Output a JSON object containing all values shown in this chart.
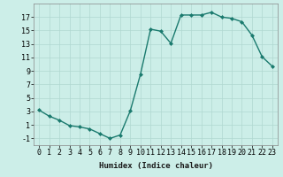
{
  "title": "",
  "xlabel": "Humidex (Indice chaleur)",
  "ylabel": "",
  "x": [
    0,
    1,
    2,
    3,
    4,
    5,
    6,
    7,
    8,
    9,
    10,
    11,
    12,
    13,
    14,
    15,
    16,
    17,
    18,
    19,
    20,
    21,
    22,
    23
  ],
  "y": [
    3.2,
    2.3,
    1.7,
    0.9,
    0.7,
    0.4,
    -0.3,
    -1.0,
    -0.5,
    3.1,
    8.5,
    15.2,
    14.9,
    13.1,
    17.3,
    17.3,
    17.3,
    17.7,
    17.0,
    16.8,
    16.3,
    14.3,
    11.1,
    9.7
  ],
  "line_color": "#1a7a6e",
  "marker": "D",
  "marker_size": 2.0,
  "bg_color": "#cceee8",
  "grid_color": "#b0d8d0",
  "ylim": [
    -2,
    19
  ],
  "xlim": [
    -0.5,
    23.5
  ],
  "yticks": [
    -1,
    1,
    3,
    5,
    7,
    9,
    11,
    13,
    15,
    17
  ],
  "xticks": [
    0,
    1,
    2,
    3,
    4,
    5,
    6,
    7,
    8,
    9,
    10,
    11,
    12,
    13,
    14,
    15,
    16,
    17,
    18,
    19,
    20,
    21,
    22,
    23
  ],
  "xlabel_fontsize": 6.5,
  "tick_fontsize": 6.0,
  "line_width": 1.0
}
